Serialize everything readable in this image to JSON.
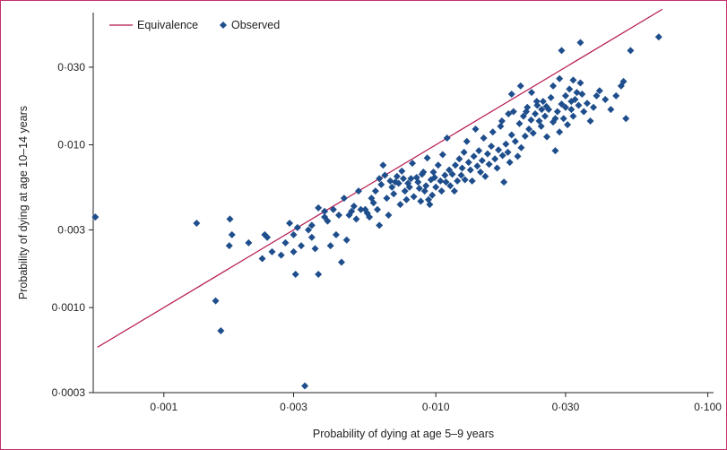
{
  "chart_data": {
    "type": "scatter",
    "xscale": "log",
    "yscale": "log",
    "xlabel": "Probability of dying at age 5–9 years",
    "ylabel": "Probability of dying at age 10–14 years",
    "xlim": [
      0.00055,
      0.105
    ],
    "ylim": [
      0.0003,
      0.065
    ],
    "xticks": [
      {
        "v": 0.001,
        "label": "0·001"
      },
      {
        "v": 0.003,
        "label": "0·003"
      },
      {
        "v": 0.01,
        "label": "0·010"
      },
      {
        "v": 0.03,
        "label": "0·030"
      },
      {
        "v": 0.1,
        "label": "0·100"
      }
    ],
    "yticks": [
      {
        "v": 0.0003,
        "label": "0·0003"
      },
      {
        "v": 0.001,
        "label": "0·0010"
      },
      {
        "v": 0.003,
        "label": "0·003"
      },
      {
        "v": 0.01,
        "label": "0·010"
      },
      {
        "v": 0.03,
        "label": "0·030"
      }
    ],
    "grid": false,
    "legend_position": "top-left",
    "legend": [
      {
        "label": "Equivalence",
        "kind": "line",
        "color": "#b5174f"
      },
      {
        "label": "Observed",
        "kind": "diamond",
        "color": "#1f4e8c"
      }
    ],
    "series": [
      {
        "name": "Equivalence",
        "kind": "line",
        "color": "#b5174f",
        "points": [
          [
            0.00057,
            0.00057
          ],
          [
            0.068,
            0.068
          ]
        ]
      },
      {
        "name": "Observed",
        "kind": "scatter",
        "color": "#1f4e8c",
        "points": [
          [
            0.00056,
            0.0036
          ],
          [
            0.00132,
            0.0033
          ],
          [
            0.00155,
            0.0011
          ],
          [
            0.00162,
            0.00072
          ],
          [
            0.00175,
            0.0035
          ],
          [
            0.00178,
            0.0028
          ],
          [
            0.00174,
            0.0024
          ],
          [
            0.00205,
            0.0025
          ],
          [
            0.0023,
            0.002
          ],
          [
            0.00235,
            0.0028
          ],
          [
            0.0024,
            0.0027
          ],
          [
            0.0025,
            0.0022
          ],
          [
            0.0027,
            0.0021
          ],
          [
            0.0028,
            0.0025
          ],
          [
            0.0029,
            0.0033
          ],
          [
            0.003,
            0.0028
          ],
          [
            0.003,
            0.0022
          ],
          [
            0.00305,
            0.0016
          ],
          [
            0.0031,
            0.0031
          ],
          [
            0.0032,
            0.0024
          ],
          [
            0.0033,
            0.00033
          ],
          [
            0.0034,
            0.003
          ],
          [
            0.0035,
            0.0032
          ],
          [
            0.0035,
            0.0027
          ],
          [
            0.0036,
            0.0023
          ],
          [
            0.0037,
            0.0041
          ],
          [
            0.0037,
            0.0016
          ],
          [
            0.0039,
            0.0039
          ],
          [
            0.0039,
            0.0036
          ],
          [
            0.004,
            0.0034
          ],
          [
            0.0041,
            0.0024
          ],
          [
            0.0042,
            0.004
          ],
          [
            0.0043,
            0.0028
          ],
          [
            0.0044,
            0.0037
          ],
          [
            0.0045,
            0.0019
          ],
          [
            0.0046,
            0.0047
          ],
          [
            0.0047,
            0.0026
          ],
          [
            0.0048,
            0.0037
          ],
          [
            0.0049,
            0.0039
          ],
          [
            0.005,
            0.0042
          ],
          [
            0.0051,
            0.0035
          ],
          [
            0.0052,
            0.0052
          ],
          [
            0.0053,
            0.004
          ],
          [
            0.0055,
            0.004
          ],
          [
            0.0056,
            0.0038
          ],
          [
            0.0057,
            0.0036
          ],
          [
            0.0058,
            0.0047
          ],
          [
            0.0059,
            0.0044
          ],
          [
            0.006,
            0.0052
          ],
          [
            0.0061,
            0.004
          ],
          [
            0.0062,
            0.0032
          ],
          [
            0.0062,
            0.0062
          ],
          [
            0.0063,
            0.0057
          ],
          [
            0.0064,
            0.0075
          ],
          [
            0.0065,
            0.0065
          ],
          [
            0.0066,
            0.0047
          ],
          [
            0.0067,
            0.0037
          ],
          [
            0.0068,
            0.006
          ],
          [
            0.0069,
            0.0055
          ],
          [
            0.007,
            0.005
          ],
          [
            0.0071,
            0.0059
          ],
          [
            0.0072,
            0.0064
          ],
          [
            0.0073,
            0.0058
          ],
          [
            0.0074,
            0.0043
          ],
          [
            0.0075,
            0.0069
          ],
          [
            0.0076,
            0.0062
          ],
          [
            0.0077,
            0.0052
          ],
          [
            0.0078,
            0.0046
          ],
          [
            0.0079,
            0.0058
          ],
          [
            0.008,
            0.0055
          ],
          [
            0.0081,
            0.0062
          ],
          [
            0.0082,
            0.0077
          ],
          [
            0.0083,
            0.0048
          ],
          [
            0.0085,
            0.0063
          ],
          [
            0.0086,
            0.0059
          ],
          [
            0.0087,
            0.0054
          ],
          [
            0.0088,
            0.0045
          ],
          [
            0.0089,
            0.0066
          ],
          [
            0.009,
            0.0068
          ],
          [
            0.0091,
            0.0052
          ],
          [
            0.0092,
            0.0056
          ],
          [
            0.0093,
            0.0083
          ],
          [
            0.0094,
            0.0046
          ],
          [
            0.0095,
            0.0043
          ],
          [
            0.0096,
            0.0061
          ],
          [
            0.0097,
            0.0049
          ],
          [
            0.0098,
            0.0068
          ],
          [
            0.0099,
            0.0063
          ],
          [
            0.01,
            0.0055
          ],
          [
            0.0102,
            0.0075
          ],
          [
            0.0104,
            0.006
          ],
          [
            0.0105,
            0.0052
          ],
          [
            0.0106,
            0.0087
          ],
          [
            0.0108,
            0.0065
          ],
          [
            0.0109,
            0.0059
          ],
          [
            0.011,
            0.011
          ],
          [
            0.0112,
            0.007
          ],
          [
            0.0113,
            0.0056
          ],
          [
            0.0115,
            0.0066
          ],
          [
            0.0117,
            0.0052
          ],
          [
            0.0118,
            0.0075
          ],
          [
            0.012,
            0.006
          ],
          [
            0.0122,
            0.0082
          ],
          [
            0.0124,
            0.0065
          ],
          [
            0.0125,
            0.0072
          ],
          [
            0.0127,
            0.009
          ],
          [
            0.0128,
            0.0061
          ],
          [
            0.013,
            0.0105
          ],
          [
            0.0132,
            0.0078
          ],
          [
            0.0134,
            0.007
          ],
          [
            0.0136,
            0.006
          ],
          [
            0.0138,
            0.0085
          ],
          [
            0.014,
            0.0125
          ],
          [
            0.0142,
            0.0074
          ],
          [
            0.0144,
            0.0092
          ],
          [
            0.0146,
            0.0068
          ],
          [
            0.0148,
            0.008
          ],
          [
            0.015,
            0.011
          ],
          [
            0.0152,
            0.0064
          ],
          [
            0.0155,
            0.0088
          ],
          [
            0.0157,
            0.0076
          ],
          [
            0.016,
            0.0098
          ],
          [
            0.0162,
            0.012
          ],
          [
            0.0165,
            0.0082
          ],
          [
            0.0168,
            0.0072
          ],
          [
            0.017,
            0.0093
          ],
          [
            0.0173,
            0.013
          ],
          [
            0.0176,
            0.0086
          ],
          [
            0.0178,
            0.0059
          ],
          [
            0.0181,
            0.0101
          ],
          [
            0.0184,
            0.009
          ],
          [
            0.0187,
            0.0078
          ],
          [
            0.019,
            0.0115
          ],
          [
            0.0193,
            0.016
          ],
          [
            0.0196,
            0.0105
          ],
          [
            0.02,
            0.0085
          ],
          [
            0.0203,
            0.0135
          ],
          [
            0.0206,
            0.0096
          ],
          [
            0.021,
            0.015
          ],
          [
            0.0213,
            0.0113
          ],
          [
            0.0217,
            0.017
          ],
          [
            0.022,
            0.0125
          ],
          [
            0.0224,
            0.0142
          ],
          [
            0.0228,
            0.0118
          ],
          [
            0.0232,
            0.0155
          ],
          [
            0.0236,
            0.0175
          ],
          [
            0.024,
            0.014
          ],
          [
            0.0244,
            0.013
          ],
          [
            0.0248,
            0.0185
          ],
          [
            0.0252,
            0.015
          ],
          [
            0.0256,
            0.0112
          ],
          [
            0.026,
            0.0165
          ],
          [
            0.0265,
            0.0195
          ],
          [
            0.027,
            0.0138
          ],
          [
            0.0275,
            0.0092
          ],
          [
            0.028,
            0.016
          ],
          [
            0.0285,
            0.012
          ],
          [
            0.029,
            0.0178
          ],
          [
            0.0295,
            0.0145
          ],
          [
            0.03,
            0.02
          ],
          [
            0.0305,
            0.0133
          ],
          [
            0.031,
            0.022
          ],
          [
            0.0315,
            0.0165
          ],
          [
            0.032,
            0.015
          ],
          [
            0.0325,
            0.019
          ],
          [
            0.033,
            0.021
          ],
          [
            0.0335,
            0.0175
          ],
          [
            0.034,
            0.024
          ],
          [
            0.0345,
            0.0205
          ],
          [
            0.035,
            0.016
          ],
          [
            0.036,
            0.018
          ],
          [
            0.037,
            0.014
          ],
          [
            0.038,
            0.017
          ],
          [
            0.039,
            0.02
          ],
          [
            0.04,
            0.0215
          ],
          [
            0.042,
            0.019
          ],
          [
            0.044,
            0.0165
          ],
          [
            0.046,
            0.02
          ],
          [
            0.048,
            0.023
          ],
          [
            0.049,
            0.0245
          ],
          [
            0.05,
            0.0145
          ],
          [
            0.052,
            0.038
          ],
          [
            0.029,
            0.038
          ],
          [
            0.034,
            0.0425
          ],
          [
            0.066,
            0.046
          ],
          [
            0.019,
            0.0205
          ],
          [
            0.0205,
            0.023
          ],
          [
            0.0225,
            0.021
          ],
          [
            0.0245,
            0.0165
          ],
          [
            0.027,
            0.023
          ],
          [
            0.0285,
            0.0255
          ],
          [
            0.0315,
            0.0185
          ],
          [
            0.0175,
            0.014
          ],
          [
            0.0185,
            0.0155
          ],
          [
            0.0215,
            0.016
          ],
          [
            0.0235,
            0.0185
          ],
          [
            0.0255,
            0.0172
          ],
          [
            0.0275,
            0.0145
          ],
          [
            0.03,
            0.017
          ],
          [
            0.032,
            0.025
          ]
        ]
      }
    ]
  }
}
